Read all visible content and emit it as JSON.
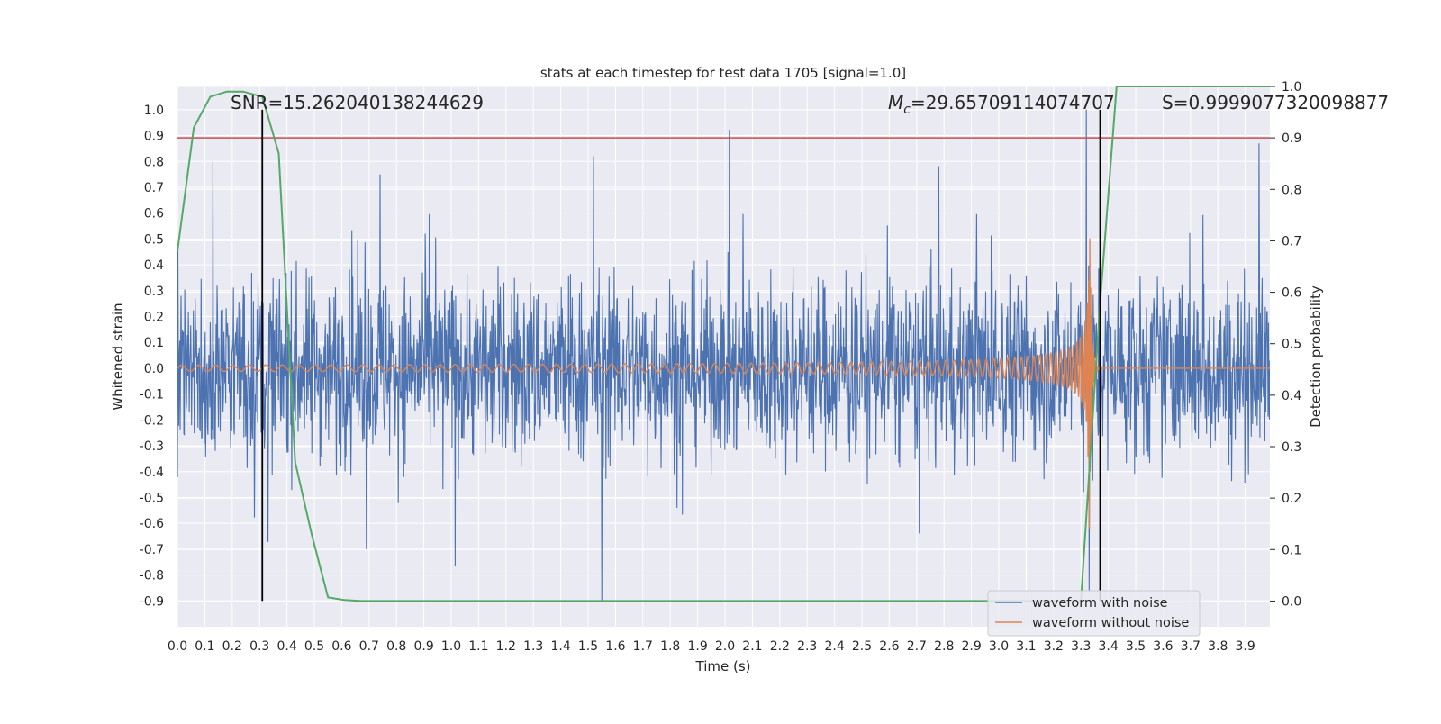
{
  "chart_data": {
    "type": "line",
    "title": "stats at each timestep for test data 1705 [signal=1.0]",
    "xlabel": "Time (s)",
    "ylabel": "Whitened strain",
    "y2label": "Detection probability",
    "xlim": [
      0.0,
      3.99
    ],
    "ylim": [
      -1.0,
      1.09
    ],
    "y2lim": [
      -0.05,
      1.0
    ],
    "xticks": [
      "0.0",
      "0.1",
      "0.2",
      "0.3",
      "0.4",
      "0.5",
      "0.6",
      "0.7",
      "0.8",
      "0.9",
      "1.0",
      "1.1",
      "1.2",
      "1.3",
      "1.4",
      "1.5",
      "1.6",
      "1.7",
      "1.8",
      "1.9",
      "2.0",
      "2.1",
      "2.2",
      "2.3",
      "2.4",
      "2.5",
      "2.6",
      "2.7",
      "2.8",
      "2.9",
      "3.0",
      "3.1",
      "3.2",
      "3.3",
      "3.4",
      "3.5",
      "3.6",
      "3.7",
      "3.8",
      "3.9"
    ],
    "yticks": [
      "1.0",
      "0.9",
      "0.8",
      "0.7",
      "0.6",
      "0.5",
      "0.4",
      "0.3",
      "0.2",
      "0.1",
      "0.0",
      "-0.1",
      "-0.2",
      "-0.3",
      "-0.4",
      "-0.5",
      "-0.6",
      "-0.7",
      "-0.8",
      "-0.9"
    ],
    "y2ticks": [
      "1.0",
      "0.9",
      "0.8",
      "0.7",
      "0.6",
      "0.5",
      "0.4",
      "0.3",
      "0.2",
      "0.1",
      "0.0"
    ],
    "annotations": {
      "snr": "SNR=15.262040138244629",
      "mc_symbol": "M",
      "mc_sub": "c",
      "mc_value": "=29.65709114074707",
      "s": "S=0.9999077320098877"
    },
    "legend": {
      "position": "lower-right",
      "entries": [
        "waveform with noise",
        "waveform without noise"
      ]
    },
    "colors": {
      "noise": "#4c72b0",
      "clean": "#dd8452",
      "probability": "#55a868",
      "threshold": "#c44e52",
      "marker": "#000000",
      "background": "#eaeaf2",
      "grid": "#ffffff"
    },
    "threshold_probability": 0.9,
    "markers_x": [
      0.31,
      3.37
    ],
    "merger_time": 3.33,
    "noise_spikes": [
      {
        "x": 0.13,
        "y": 0.8
      },
      {
        "x": 0.33,
        "y": -0.67
      },
      {
        "x": 0.69,
        "y": -0.7
      },
      {
        "x": 0.74,
        "y": 0.75
      },
      {
        "x": 1.52,
        "y": 0.82
      },
      {
        "x": 1.55,
        "y": -0.9
      },
      {
        "x": 2.78,
        "y": 0.78
      },
      {
        "x": 3.32,
        "y": 1.0
      },
      {
        "x": 3.33,
        "y": -0.86
      },
      {
        "x": 3.95,
        "y": 0.87
      }
    ],
    "series": [
      {
        "name": "detection probability",
        "axis": "right",
        "x": [
          0.0,
          0.06,
          0.12,
          0.18,
          0.24,
          0.31,
          0.37,
          0.43,
          0.49,
          0.55,
          0.61,
          0.67,
          3.3,
          3.37,
          3.43,
          3.99
        ],
        "values": [
          0.68,
          0.92,
          0.98,
          0.99,
          0.99,
          0.98,
          0.87,
          0.27,
          0.13,
          0.007,
          0.002,
          0.0,
          0.0,
          0.58,
          1.0,
          1.0
        ]
      }
    ]
  }
}
